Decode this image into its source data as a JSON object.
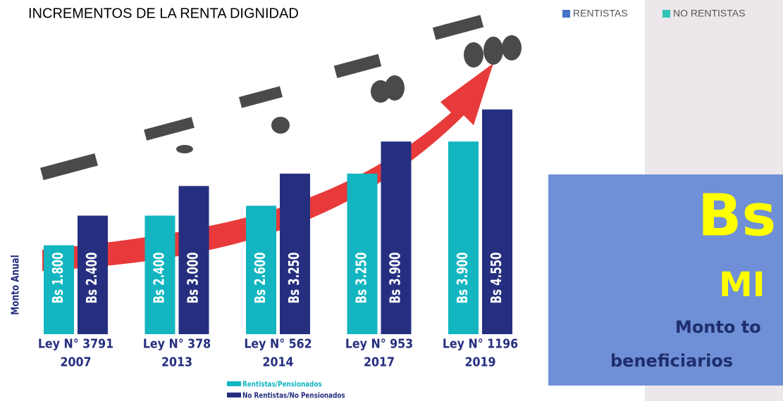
{
  "chart_data": {
    "type": "bar",
    "title": "INCREMENTOS DE LA RENTA DIGNIDAD",
    "y_label": "Monto Anual",
    "categories": [
      "Ley N° 3791",
      "Ley N° 378",
      "Ley N° 562",
      "Ley N° 953",
      "Ley N° 1196"
    ],
    "category_years": [
      "2007",
      "2013",
      "2014",
      "2017",
      "2019"
    ],
    "ylim": [
      0,
      4800
    ],
    "series": [
      {
        "name": "Rentistas/Pensionados",
        "color": "#12b5c0",
        "values": [
          1800,
          2400,
          2600,
          3250,
          3900
        ],
        "value_labels": [
          "Bs 1.800",
          "Bs 2.400",
          "Bs 2.600",
          "Bs 3.250",
          "Bs 3.900"
        ]
      },
      {
        "name": "No Rentistas/No Pensionados",
        "color": "#262f7f",
        "values": [
          2400,
          3000,
          3250,
          3900,
          4550
        ],
        "value_labels": [
          "Bs 2.400",
          "Bs 3.000",
          "Bs 3.250",
          "Bs 3.900",
          "Bs 4.550"
        ]
      }
    ],
    "legend_top": [
      {
        "name": "RENTISTAS",
        "color": "#4472c4"
      },
      {
        "name": "NO RENTISTAS",
        "color": "#2ec4b6"
      }
    ]
  },
  "side_panel": {
    "big": "Bs",
    "sub": "MI",
    "line1": "Monto to",
    "line2": "beneficiarios"
  }
}
